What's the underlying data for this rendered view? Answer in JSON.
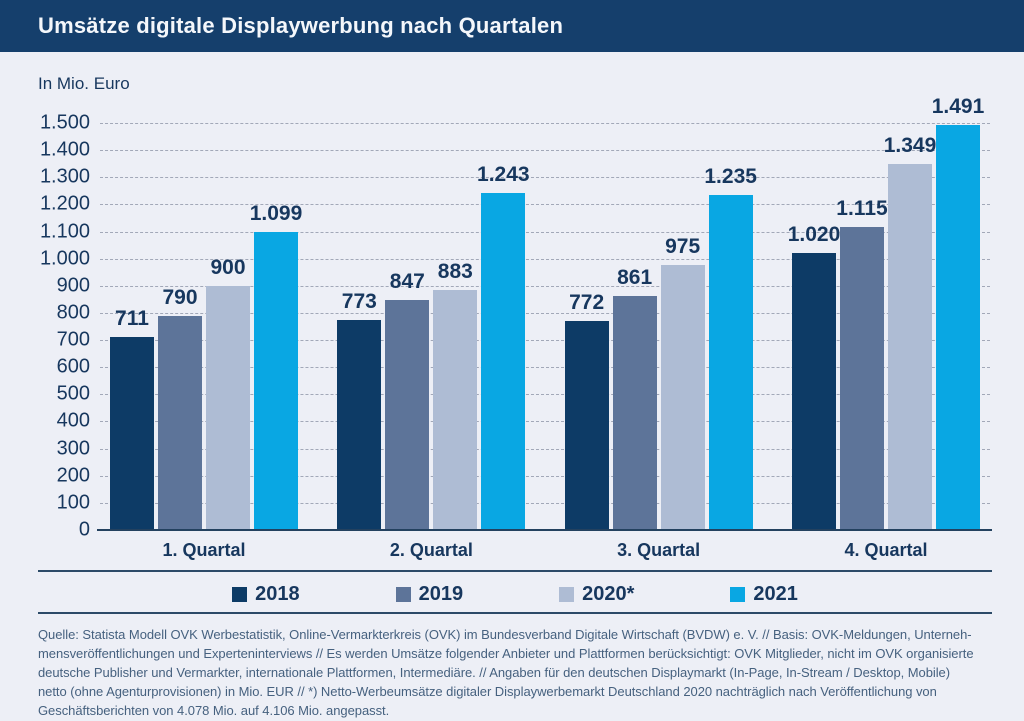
{
  "header": {
    "title": "Umsätze digitale Displaywerbung nach Quartalen"
  },
  "unit_label": "In Mio. Euro",
  "colors": {
    "header_bg": "#153f6c",
    "background": "#edeff6",
    "text_navy": "#17375e",
    "gridline": "#a2a8b8",
    "separator": "#2c4a68",
    "footer_text": "#46617f",
    "series_2018": "#0d3b66",
    "series_2019": "#5d7499",
    "series_2020": "#aebcd4",
    "series_2021": "#09a7e3"
  },
  "chart_data": {
    "type": "bar",
    "title": "Umsätze digitale Displaywerbung nach Quartalen",
    "xlabel": "",
    "ylabel": "In Mio. Euro",
    "categories": [
      "1. Quartal",
      "2. Quartal",
      "3. Quartal",
      "4. Quartal"
    ],
    "series": [
      {
        "name": "2018",
        "color": "#0d3b66",
        "values": [
          711,
          773,
          772,
          1020
        ],
        "labels": [
          "711",
          "773",
          "772",
          "1.020"
        ]
      },
      {
        "name": "2019",
        "color": "#5d7499",
        "values": [
          790,
          847,
          861,
          1115
        ],
        "labels": [
          "790",
          "847",
          "861",
          "1.115"
        ]
      },
      {
        "name": "2020*",
        "color": "#aebcd4",
        "values": [
          900,
          883,
          975,
          1349
        ],
        "labels": [
          "900",
          "883",
          "975",
          "1.349"
        ]
      },
      {
        "name": "2021",
        "color": "#09a7e3",
        "values": [
          1099,
          1243,
          1235,
          1491
        ],
        "labels": [
          "1.099",
          "1.243",
          "1.235",
          "1.491"
        ]
      }
    ],
    "ylim": [
      0,
      1500
    ],
    "ytick_step": 100,
    "ytick_labels": [
      "0",
      "100",
      "200",
      "300",
      "400",
      "500",
      "600",
      "700",
      "800",
      "900",
      "1.000",
      "1.100",
      "1.200",
      "1.300",
      "1.400",
      "1.500"
    ],
    "grid": "dashed-horizontal",
    "legend_position": "bottom"
  },
  "footer": {
    "lines": [
      "Quelle: Statista Modell OVK Werbestatistik, Online-Vermarkterkreis (OVK) im Bundesverband Digitale Wirtschaft (BVDW) e. V. // Basis: OVK-Meldungen, Unterneh-",
      "mensveröffentlichungen und Experteninterviews // Es werden Umsätze folgender Anbieter und Plattformen berücksichtigt: OVK Mitglieder, nicht im OVK organisierte",
      "deutsche Publisher und Vermarkter, internationale Plattformen, Intermediäre. // Angaben für den deutschen Displaymarkt (In-Page, In-Stream / Desktop, Mobile)",
      "netto (ohne Agenturprovisionen) in Mio. EUR // *) Netto-Werbeumsätze digitaler Displaywerbemarkt Deutschland 2020 nachträglich nach Veröffentlichung von",
      "Geschäftsberichten von 4.078 Mio. auf 4.106 Mio. angepasst."
    ]
  }
}
